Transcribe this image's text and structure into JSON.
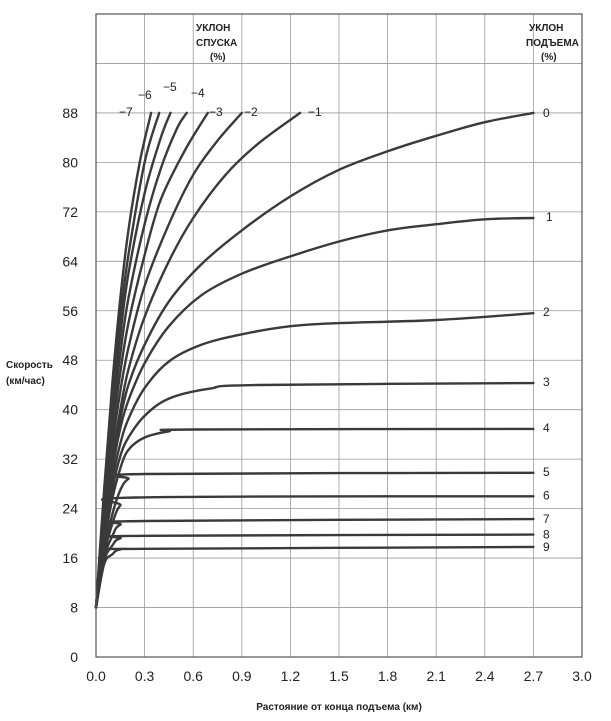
{
  "chart_data": {
    "type": "line",
    "xlabel": "Растояние от конца подъема (км)",
    "ylabel_lines": [
      "Скорость",
      "(км/час)"
    ],
    "xlim": [
      0,
      3.0
    ],
    "ylim": [
      0,
      104
    ],
    "x_ticks": [
      "0.0",
      "0.3",
      "0.6",
      "0.9",
      "1.2",
      "1.5",
      "1.8",
      "2.1",
      "2.4",
      "2.7",
      "3.0"
    ],
    "y_ticks": [
      "0",
      "8",
      "16",
      "24",
      "32",
      "40",
      "48",
      "56",
      "64",
      "72",
      "80",
      "88"
    ],
    "grid": true,
    "descent_title": [
      "УКЛОН",
      "СПУСКА",
      "(%)"
    ],
    "ascent_title": [
      "УКЛОН",
      "ПОДЪЕМА",
      "(%)"
    ],
    "series": [
      {
        "label": "9",
        "x": [
          0,
          0.05,
          0.1,
          0.15,
          0.3,
          2.7
        ],
        "y": [
          8,
          15,
          16.6,
          17.4,
          17.5,
          17.8
        ]
      },
      {
        "label": "8",
        "x": [
          0,
          0.05,
          0.1,
          0.15,
          0.3,
          2.7
        ],
        "y": [
          8,
          15.5,
          18,
          19.2,
          19.6,
          19.8
        ]
      },
      {
        "label": "7",
        "x": [
          0,
          0.05,
          0.1,
          0.15,
          0.3,
          2.7
        ],
        "y": [
          8,
          16,
          19.5,
          21.4,
          22,
          22.3
        ]
      },
      {
        "label": "6",
        "x": [
          0,
          0.05,
          0.1,
          0.15,
          0.25,
          2.7
        ],
        "y": [
          8,
          16.5,
          21.5,
          24.5,
          25.8,
          26
        ]
      },
      {
        "label": "5",
        "x": [
          0,
          0.05,
          0.1,
          0.15,
          0.2,
          0.3,
          2.7
        ],
        "y": [
          8,
          17,
          23,
          27,
          28.8,
          29.6,
          29.8
        ]
      },
      {
        "label": "4",
        "x": [
          0,
          0.05,
          0.1,
          0.15,
          0.2,
          0.3,
          0.45,
          0.6,
          2.7
        ],
        "y": [
          8,
          18,
          25.5,
          30.5,
          33.5,
          35.5,
          36.5,
          36.8,
          36.9
        ]
      },
      {
        "label": "3",
        "x": [
          0,
          0.05,
          0.1,
          0.15,
          0.2,
          0.3,
          0.45,
          0.7,
          1.0,
          2.7
        ],
        "y": [
          8,
          18.5,
          27,
          32.5,
          35.5,
          39,
          41.8,
          43.4,
          44,
          44.3
        ]
      },
      {
        "label": "2",
        "x": [
          0,
          0.05,
          0.1,
          0.15,
          0.2,
          0.3,
          0.45,
          0.65,
          0.9,
          1.2,
          1.5,
          2.1,
          2.7
        ],
        "y": [
          8,
          19,
          28.5,
          34.5,
          38.5,
          43.5,
          47.8,
          50.5,
          52.2,
          53.5,
          54,
          54.5,
          55.6
        ]
      },
      {
        "label": "1",
        "x": [
          0,
          0.05,
          0.1,
          0.15,
          0.2,
          0.3,
          0.45,
          0.65,
          0.9,
          1.2,
          1.5,
          1.8,
          2.1,
          2.4,
          2.7
        ],
        "y": [
          8,
          19.5,
          30,
          37,
          41.5,
          47.5,
          53.5,
          58.5,
          62,
          64.8,
          67.2,
          69,
          70,
          70.8,
          71
        ]
      },
      {
        "label": "0",
        "x": [
          0,
          0.05,
          0.1,
          0.15,
          0.2,
          0.3,
          0.45,
          0.65,
          0.9,
          1.2,
          1.5,
          1.8,
          2.1,
          2.4,
          2.7
        ],
        "y": [
          8,
          20,
          31,
          38.5,
          44,
          50.5,
          57.5,
          63.5,
          69,
          74.5,
          78.8,
          81.8,
          84.3,
          86.5,
          88
        ]
      },
      {
        "label": "−1",
        "x": [
          0,
          0.05,
          0.1,
          0.15,
          0.2,
          0.3,
          0.45,
          0.6,
          0.8,
          1.0,
          1.26
        ],
        "y": [
          8,
          21,
          32,
          40,
          46.5,
          55,
          64,
          71,
          78,
          83,
          88
        ]
      },
      {
        "label": "−2",
        "x": [
          0,
          0.05,
          0.1,
          0.15,
          0.2,
          0.3,
          0.45,
          0.6,
          0.75,
          0.9
        ],
        "y": [
          8,
          22,
          34,
          43,
          50,
          60,
          70,
          78,
          83.5,
          88
        ]
      },
      {
        "label": "−3",
        "x": [
          0,
          0.05,
          0.1,
          0.15,
          0.2,
          0.3,
          0.4,
          0.55,
          0.69
        ],
        "y": [
          8,
          23,
          36,
          46,
          54,
          65,
          74,
          82,
          88
        ]
      },
      {
        "label": "−4",
        "x": [
          0,
          0.05,
          0.1,
          0.15,
          0.2,
          0.3,
          0.4,
          0.5,
          0.56
        ],
        "y": [
          8,
          24,
          38,
          49,
          58,
          70,
          79,
          85.5,
          88
        ]
      },
      {
        "label": "−5",
        "x": [
          0,
          0.05,
          0.1,
          0.15,
          0.2,
          0.3,
          0.4,
          0.46
        ],
        "y": [
          8,
          25,
          40,
          52,
          62,
          75,
          84,
          88
        ]
      },
      {
        "label": "−6",
        "x": [
          0,
          0.05,
          0.1,
          0.15,
          0.2,
          0.3,
          0.39
        ],
        "y": [
          8,
          26,
          42,
          55,
          65,
          80,
          88
        ]
      },
      {
        "label": "−7",
        "x": [
          0,
          0.05,
          0.1,
          0.15,
          0.2,
          0.27,
          0.34
        ],
        "y": [
          8,
          27,
          44,
          58,
          69,
          80,
          88
        ]
      }
    ]
  }
}
